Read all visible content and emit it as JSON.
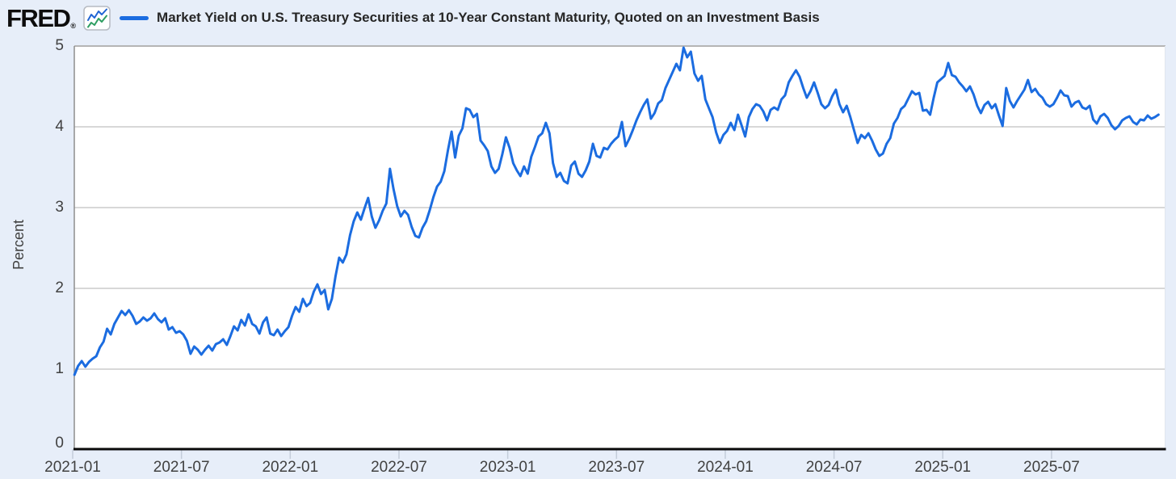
{
  "header": {
    "logo_text": "FRED",
    "registered_mark": "®"
  },
  "colors": {
    "background": "#e7eef9",
    "plot_background": "#ffffff",
    "line_blue": "#1b6ce0",
    "gridline": "#cbcbcb",
    "top_border": "#b5b5b5",
    "left_border": "#8d8d8d",
    "right_border": "#e0e6ee",
    "x_axis": "#0a0a0a",
    "tick_mark": "#c4cdda",
    "tick_text": "#414141",
    "logo_icon_blue": "#2165d4",
    "logo_icon_green": "#2f9e62"
  },
  "chart_data": {
    "type": "line",
    "title": "Market Yield on U.S. Treasury Securities at 10-Year Constant Maturity, Quoted on an Investment Basis",
    "xlabel": "",
    "ylabel": "Percent",
    "ylim": [
      0,
      5
    ],
    "y_tick_labels": [
      "0",
      "1",
      "2",
      "3",
      "4",
      "5"
    ],
    "x_tick_labels": [
      "2021-01",
      "2021-07",
      "2022-01",
      "2022-07",
      "2023-01",
      "2023-07",
      "2024-01",
      "2024-07",
      "2025-01",
      "2025-07"
    ],
    "x_tick_step_months": 6,
    "x_range": [
      "2021-01",
      "2025-12"
    ],
    "grid": "horizontal",
    "legend_position": "top",
    "unit": "Percent",
    "series": [
      {
        "name": "Market Yield on U.S. Treasury Securities at 10-Year Constant Maturity, Quoted on an Investment Basis",
        "color": "#1b6ce0",
        "points_per_month": 5,
        "start_month_offset": 0.1,
        "values": [
          0.93,
          1.04,
          1.1,
          1.03,
          1.09,
          1.13,
          1.16,
          1.27,
          1.34,
          1.5,
          1.43,
          1.56,
          1.64,
          1.72,
          1.67,
          1.73,
          1.66,
          1.56,
          1.59,
          1.64,
          1.6,
          1.63,
          1.69,
          1.62,
          1.58,
          1.63,
          1.49,
          1.52,
          1.45,
          1.47,
          1.43,
          1.35,
          1.19,
          1.28,
          1.24,
          1.18,
          1.24,
          1.29,
          1.23,
          1.31,
          1.33,
          1.37,
          1.3,
          1.41,
          1.53,
          1.48,
          1.61,
          1.54,
          1.68,
          1.56,
          1.53,
          1.44,
          1.58,
          1.64,
          1.44,
          1.42,
          1.49,
          1.41,
          1.47,
          1.52,
          1.66,
          1.77,
          1.71,
          1.87,
          1.78,
          1.82,
          1.96,
          2.05,
          1.93,
          1.98,
          1.74,
          1.87,
          2.15,
          2.38,
          2.32,
          2.42,
          2.66,
          2.83,
          2.94,
          2.85,
          2.99,
          3.12,
          2.89,
          2.75,
          2.84,
          2.96,
          3.05,
          3.48,
          3.23,
          3.02,
          2.89,
          2.96,
          2.91,
          2.76,
          2.65,
          2.63,
          2.75,
          2.83,
          2.97,
          3.13,
          3.26,
          3.32,
          3.45,
          3.71,
          3.94,
          3.62,
          3.89,
          3.98,
          4.23,
          4.21,
          4.12,
          4.16,
          3.83,
          3.77,
          3.7,
          3.51,
          3.43,
          3.48,
          3.66,
          3.87,
          3.74,
          3.55,
          3.46,
          3.39,
          3.51,
          3.42,
          3.63,
          3.75,
          3.88,
          3.92,
          4.05,
          3.92,
          3.55,
          3.38,
          3.43,
          3.33,
          3.3,
          3.52,
          3.57,
          3.42,
          3.38,
          3.46,
          3.57,
          3.79,
          3.64,
          3.62,
          3.74,
          3.72,
          3.79,
          3.84,
          3.88,
          4.06,
          3.76,
          3.85,
          3.96,
          4.08,
          4.18,
          4.27,
          4.34,
          4.1,
          4.17,
          4.29,
          4.33,
          4.48,
          4.58,
          4.68,
          4.78,
          4.7,
          4.98,
          4.86,
          4.93,
          4.66,
          4.57,
          4.63,
          4.34,
          4.23,
          4.12,
          3.93,
          3.8,
          3.9,
          3.95,
          4.05,
          3.96,
          4.15,
          4.02,
          3.88,
          4.12,
          4.22,
          4.28,
          4.26,
          4.19,
          4.08,
          4.21,
          4.24,
          4.21,
          4.34,
          4.39,
          4.55,
          4.63,
          4.7,
          4.62,
          4.48,
          4.36,
          4.44,
          4.55,
          4.42,
          4.28,
          4.23,
          4.27,
          4.38,
          4.46,
          4.28,
          4.18,
          4.26,
          4.12,
          3.96,
          3.8,
          3.9,
          3.86,
          3.92,
          3.83,
          3.72,
          3.64,
          3.67,
          3.79,
          3.86,
          4.04,
          4.11,
          4.22,
          4.26,
          4.35,
          4.44,
          4.4,
          4.42,
          4.2,
          4.21,
          4.15,
          4.36,
          4.55,
          4.59,
          4.63,
          4.79,
          4.64,
          4.62,
          4.55,
          4.5,
          4.44,
          4.5,
          4.4,
          4.26,
          4.17,
          4.27,
          4.31,
          4.23,
          4.28,
          4.14,
          4.01,
          4.48,
          4.32,
          4.24,
          4.32,
          4.39,
          4.46,
          4.58,
          4.43,
          4.47,
          4.4,
          4.36,
          4.28,
          4.25,
          4.28,
          4.36,
          4.45,
          4.39,
          4.38,
          4.25,
          4.3,
          4.32,
          4.24,
          4.22,
          4.26,
          4.09,
          4.04,
          4.13,
          4.16,
          4.11,
          4.02,
          3.97,
          4.01,
          4.08,
          4.11,
          4.13,
          4.06,
          4.03,
          4.09,
          4.08,
          4.14,
          4.1,
          4.12,
          4.15
        ]
      }
    ]
  }
}
